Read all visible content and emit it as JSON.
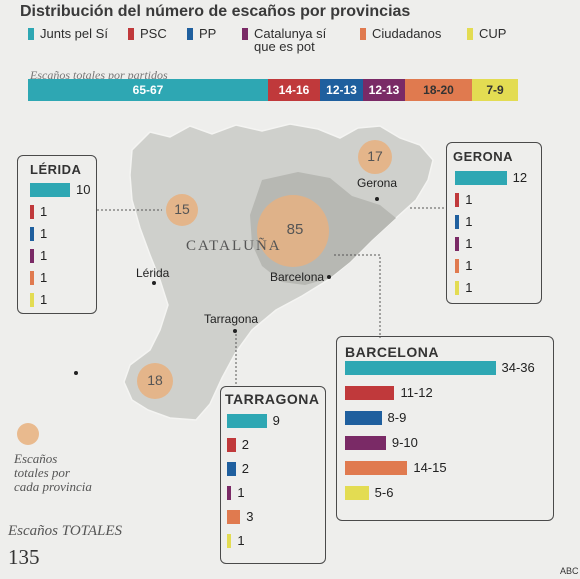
{
  "title": "Distribución del número de escaños por provincias",
  "colors": {
    "junts": "#2ea7b3",
    "psc": "#c0393b",
    "pp": "#1f5f9e",
    "catsiqueespot": "#7a2a66",
    "cs": "#e07a4f",
    "cup": "#e3dc52",
    "circle": "#e8b07e",
    "map": "#cfd0cc",
    "mapdark": "#b7b8b3"
  },
  "legend": [
    {
      "label": "Junts pel Sí",
      "color_key": "junts"
    },
    {
      "label": "PSC",
      "color_key": "psc"
    },
    {
      "label": "PP",
      "color_key": "pp"
    },
    {
      "label": "Catalunya sí\nque es pot",
      "color_key": "catsiqueespot"
    },
    {
      "label": "Ciudadanos",
      "color_key": "cs"
    },
    {
      "label": "CUP",
      "color_key": "cup"
    }
  ],
  "party_bar": {
    "subtitle": "Escaños totales por partidos",
    "segments": [
      {
        "label": "65-67",
        "seats": 66,
        "color_key": "junts"
      },
      {
        "label": "14-16",
        "seats": 15,
        "color_key": "psc"
      },
      {
        "label": "12-13",
        "seats": 12.5,
        "color_key": "pp"
      },
      {
        "label": "12-13",
        "seats": 12.5,
        "color_key": "catsiqueespot"
      },
      {
        "label": "18-20",
        "seats": 19,
        "color_key": "cs"
      },
      {
        "label": "7-9",
        "seats": 8,
        "color_key": "cup"
      }
    ]
  },
  "region_label": "CATALUÑA",
  "cities": {
    "lerida": "Lérida",
    "gerona": "Gerona",
    "barcelona": "Barcelona",
    "tarragona": "Tarragona"
  },
  "circles": {
    "lerida": "15",
    "gerona": "17",
    "barcelona": "85",
    "tarragona": "18"
  },
  "provinces": {
    "lerida": {
      "name": "LÉRIDA",
      "rows": [
        {
          "text": "10",
          "value": 10,
          "color_key": "junts"
        },
        {
          "text": "1",
          "value": 1,
          "color_key": "psc"
        },
        {
          "text": "1",
          "value": 1,
          "color_key": "pp"
        },
        {
          "text": "1",
          "value": 1,
          "color_key": "catsiqueespot"
        },
        {
          "text": "1",
          "value": 1,
          "color_key": "cs"
        },
        {
          "text": "1",
          "value": 1,
          "color_key": "cup"
        }
      ]
    },
    "gerona": {
      "name": "GERONA",
      "rows": [
        {
          "text": "12",
          "value": 12,
          "color_key": "junts"
        },
        {
          "text": "1",
          "value": 1,
          "color_key": "psc"
        },
        {
          "text": "1",
          "value": 1,
          "color_key": "pp"
        },
        {
          "text": "1",
          "value": 1,
          "color_key": "catsiqueespot"
        },
        {
          "text": "1",
          "value": 1,
          "color_key": "cs"
        },
        {
          "text": "1",
          "value": 1,
          "color_key": "cup"
        }
      ]
    },
    "tarragona": {
      "name": "TARRAGONA",
      "rows": [
        {
          "text": "9",
          "value": 9,
          "color_key": "junts"
        },
        {
          "text": "2",
          "value": 2,
          "color_key": "psc"
        },
        {
          "text": "2",
          "value": 2,
          "color_key": "pp"
        },
        {
          "text": "1",
          "value": 1,
          "color_key": "catsiqueespot"
        },
        {
          "text": "3",
          "value": 3,
          "color_key": "cs"
        },
        {
          "text": "1",
          "value": 1,
          "color_key": "cup"
        }
      ]
    },
    "barcelona": {
      "name": "BARCELONA",
      "rows": [
        {
          "text": "34-36",
          "value": 35,
          "color_key": "junts"
        },
        {
          "text": "11-12",
          "value": 11.5,
          "color_key": "psc"
        },
        {
          "text": "8-9",
          "value": 8.5,
          "color_key": "pp"
        },
        {
          "text": "9-10",
          "value": 9.5,
          "color_key": "catsiqueespot"
        },
        {
          "text": "14-15",
          "value": 14.5,
          "color_key": "cs"
        },
        {
          "text": "5-6",
          "value": 5.5,
          "color_key": "cup"
        }
      ]
    }
  },
  "key_label": "Escaños\ntotales por\ncada provincia",
  "total_label": "Escaños TOTALES",
  "total_value": "135",
  "credit": "ABC"
}
